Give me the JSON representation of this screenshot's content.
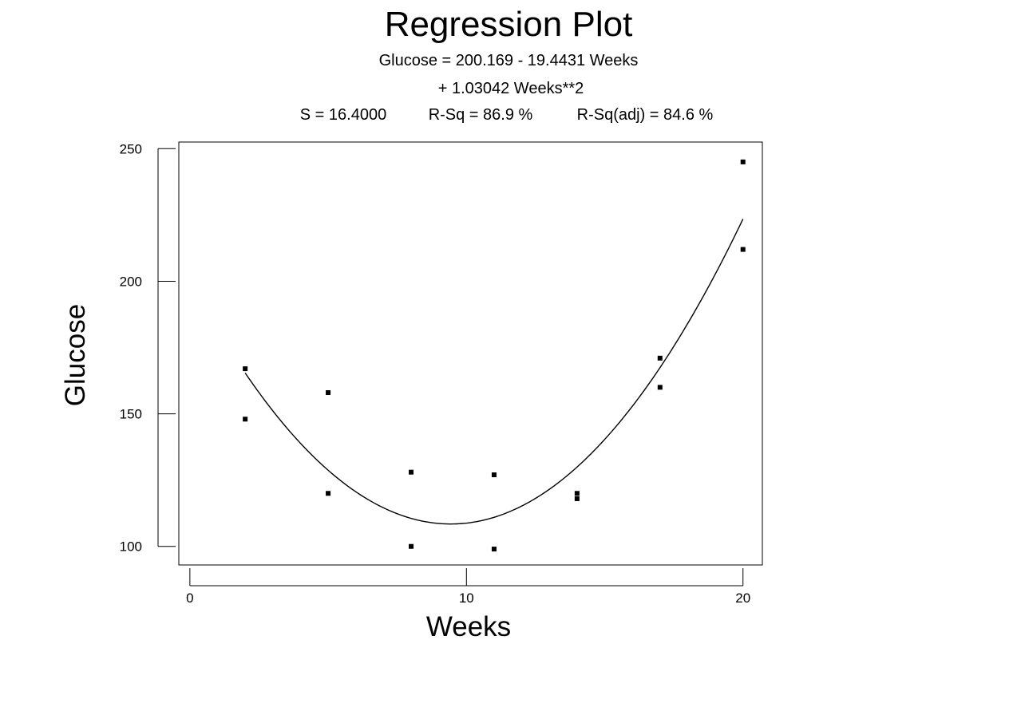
{
  "chart_data": {
    "type": "scatter",
    "title": "Regression Plot",
    "equation_line1": "Glucose = 200.169 - 19.4431 Weeks",
    "equation_line2": "+ 1.03042 Weeks**2",
    "stats": {
      "s": "S = 16.4000",
      "r_sq": "R-Sq = 86.9 %",
      "r_sq_adj": "R-Sq(adj) = 84.6 %"
    },
    "xlabel": "Weeks",
    "ylabel": "Glucose",
    "xlim": [
      -0.4,
      20.7
    ],
    "ylim": [
      93,
      252.5
    ],
    "x_ticks": [
      0,
      10,
      20
    ],
    "y_ticks": [
      100,
      150,
      200,
      250
    ],
    "points": [
      {
        "x": 2,
        "y": 167
      },
      {
        "x": 2,
        "y": 148
      },
      {
        "x": 5,
        "y": 158
      },
      {
        "x": 5,
        "y": 120
      },
      {
        "x": 8,
        "y": 128
      },
      {
        "x": 8,
        "y": 100
      },
      {
        "x": 11,
        "y": 127
      },
      {
        "x": 11,
        "y": 99
      },
      {
        "x": 14,
        "y": 120
      },
      {
        "x": 14,
        "y": 118
      },
      {
        "x": 17,
        "y": 171
      },
      {
        "x": 17,
        "y": 160
      },
      {
        "x": 20,
        "y": 245
      },
      {
        "x": 20,
        "y": 212
      }
    ],
    "fit": {
      "intercept": 200.169,
      "linear": -19.4431,
      "quadratic": 1.03042,
      "x_range": [
        2,
        20
      ]
    },
    "grid": false,
    "legend": "none"
  }
}
